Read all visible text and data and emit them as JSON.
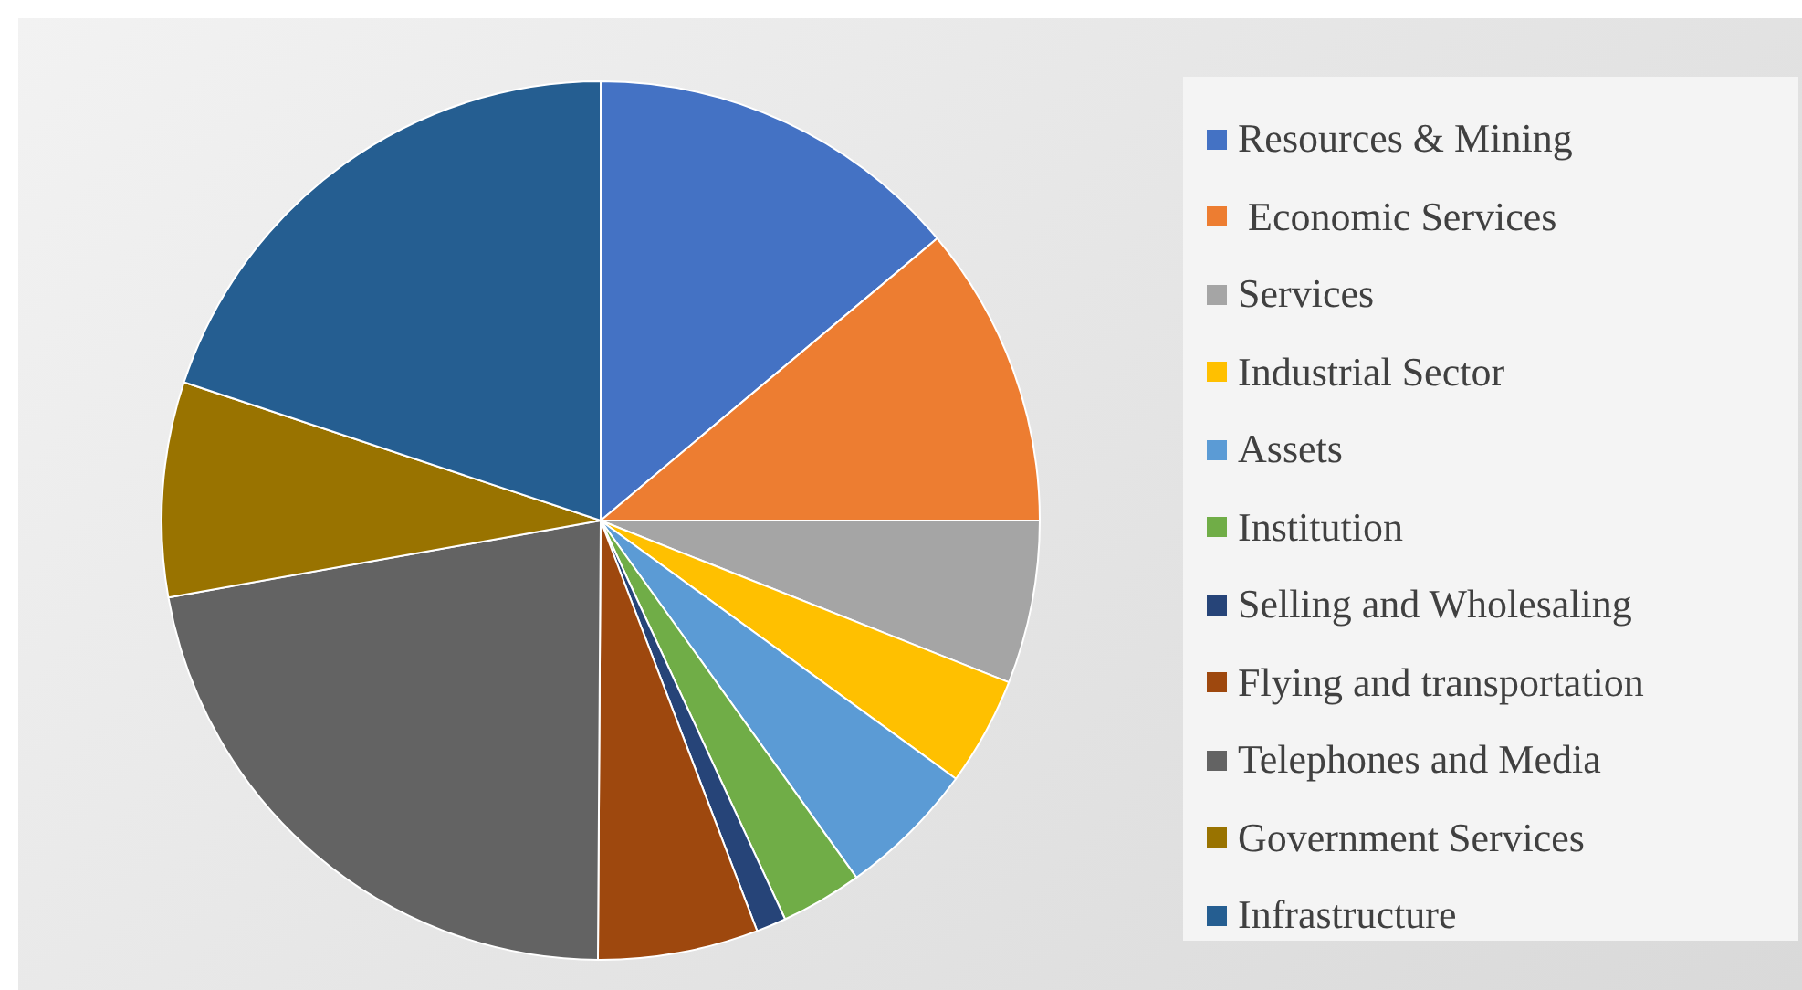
{
  "chart_data": {
    "type": "pie",
    "categories": [
      "Resources & Mining",
      " Economic Services",
      "Services",
      "Industrial Sector",
      "Assets",
      "Institution",
      "Selling and Wholesaling",
      "Flying and transportation",
      "Telephones and Media",
      "Government Services",
      "Infrastructure"
    ],
    "values": [
      13.9,
      11.1,
      6.0,
      4.0,
      5.1,
      3.0,
      1.1,
      5.9,
      22.1,
      7.9,
      19.9
    ],
    "colors": [
      "#4472c4",
      "#ed7d31",
      "#a5a5a5",
      "#ffc000",
      "#5b9bd5",
      "#70ad47",
      "#264478",
      "#9e480e",
      "#636363",
      "#997300",
      "#255e91"
    ],
    "legend": "right"
  }
}
